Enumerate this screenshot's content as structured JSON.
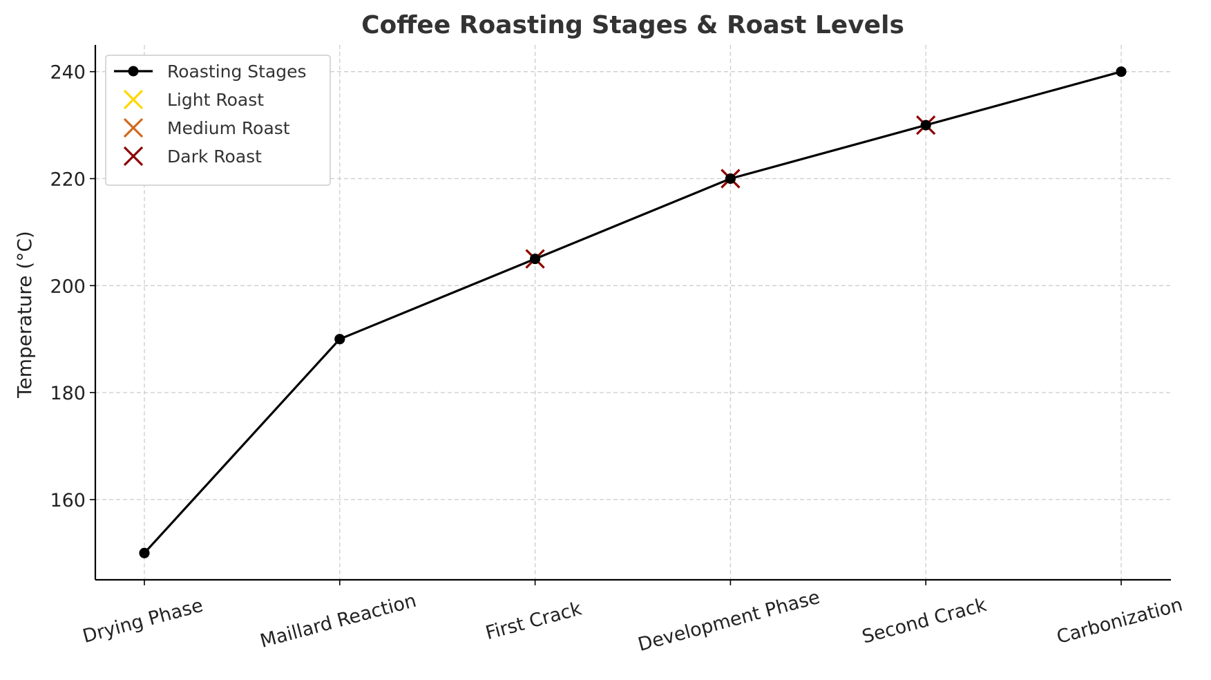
{
  "chart_data": {
    "type": "line",
    "title": "Coffee Roasting Stages & Roast Levels",
    "xlabel": "",
    "ylabel": "Temperature (°C)",
    "categories": [
      "Drying Phase",
      "Maillard Reaction",
      "First Crack",
      "Development Phase",
      "Second Crack",
      "Carbonization"
    ],
    "ylim": [
      145,
      245
    ],
    "yticks": [
      160,
      180,
      200,
      220,
      240
    ],
    "grid": true,
    "legend_position": "top-left",
    "series": [
      {
        "name": "Roasting Stages",
        "kind": "line-with-markers",
        "color": "#000000",
        "values": [
          150,
          190,
          205,
          220,
          230,
          240
        ]
      },
      {
        "name": "Light Roast",
        "kind": "x-marker",
        "color": "#FFD700",
        "points": [
          {
            "category": "First Crack",
            "value": 205
          }
        ]
      },
      {
        "name": "Medium Roast",
        "kind": "x-marker",
        "color": "#D2691E",
        "points": [
          {
            "category": "Development Phase",
            "value": 220
          }
        ]
      },
      {
        "name": "Dark Roast",
        "kind": "x-marker",
        "color": "#8B0000",
        "points": [
          {
            "category": "First Crack",
            "value": 205
          },
          {
            "category": "Development Phase",
            "value": 220
          },
          {
            "category": "Second Crack",
            "value": 230
          }
        ]
      }
    ]
  }
}
